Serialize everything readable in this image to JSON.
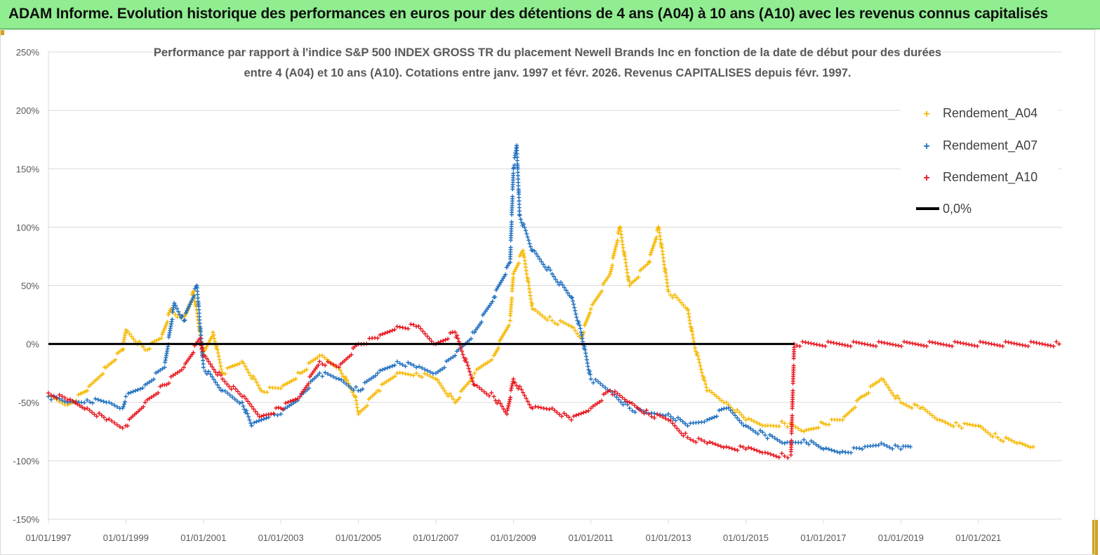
{
  "header": {
    "title": "ADAM Informe. Evolution historique des performances en euros pour des détentions de 4 ans (A04) à 10 ans (A10) avec les revenus connus capitalisés"
  },
  "chart_data": {
    "type": "scatter",
    "title_line1": "Performance par rapport à l'indice S&P 500 INDEX GROSS TR  du placement Newell Brands Inc en fonction de la date de début pour des durées",
    "title_line2": "entre 4 (A04) et 10 ans (A10). Cotations entre janv. 1997 et févr. 2026. Revenus CAPITALISES depuis févr. 1997.",
    "x_axis": {
      "type": "date",
      "range": [
        "1997-01-01",
        "2023-03-01"
      ],
      "tick_labels": [
        "01/01/1997",
        "01/01/1999",
        "01/01/2001",
        "01/01/2003",
        "01/01/2005",
        "01/01/2007",
        "01/01/2009",
        "01/01/2011",
        "01/01/2013",
        "01/01/2015",
        "01/01/2017",
        "01/01/2019",
        "01/01/2021"
      ]
    },
    "y_axis": {
      "unit": "%",
      "range": [
        -150,
        250
      ],
      "step": 50,
      "tick_labels": [
        "250%",
        "200%",
        "150%",
        "100%",
        "50%",
        "0%",
        "-50%",
        "-100%",
        "-150%"
      ]
    },
    "grid": "horizontal",
    "legend_position": "top-right",
    "legend": [
      {
        "label": "Rendement_A04",
        "color": "#f5b800",
        "marker": "plus"
      },
      {
        "label": "Rendement_A07",
        "color": "#1f6fbf",
        "marker": "plus"
      },
      {
        "label": "Rendement_A10",
        "color": "#e8141c",
        "marker": "plus"
      },
      {
        "label": "0,0%",
        "color": "#000000",
        "marker": "line"
      }
    ],
    "series": [
      {
        "name": "Rendement_A04",
        "color": "#f5b800",
        "points": [
          [
            "1997-01-01",
            -45
          ],
          [
            "1997-07-01",
            -52
          ],
          [
            "1998-01-01",
            -40
          ],
          [
            "1998-07-01",
            -20
          ],
          [
            "1998-12-01",
            -5
          ],
          [
            "1999-01-01",
            12
          ],
          [
            "1999-07-01",
            -5
          ],
          [
            "1999-12-01",
            5
          ],
          [
            "2000-03-01",
            30
          ],
          [
            "2000-07-01",
            20
          ],
          [
            "2000-10-01",
            45
          ],
          [
            "2001-01-01",
            -10
          ],
          [
            "2001-04-01",
            10
          ],
          [
            "2001-07-01",
            -25
          ],
          [
            "2002-01-01",
            -15
          ],
          [
            "2002-07-01",
            -40
          ],
          [
            "2003-01-01",
            -38
          ],
          [
            "2003-07-01",
            -25
          ],
          [
            "2004-01-01",
            -10
          ],
          [
            "2004-07-01",
            -20
          ],
          [
            "2004-12-01",
            -45
          ],
          [
            "2005-01-01",
            -60
          ],
          [
            "2005-07-01",
            -40
          ],
          [
            "2006-01-01",
            -25
          ],
          [
            "2006-07-01",
            -25
          ],
          [
            "2007-01-01",
            -30
          ],
          [
            "2007-07-01",
            -50
          ],
          [
            "2008-01-01",
            -25
          ],
          [
            "2008-07-01",
            -10
          ],
          [
            "2008-12-01",
            20
          ],
          [
            "2009-01-01",
            60
          ],
          [
            "2009-04-01",
            80
          ],
          [
            "2009-07-01",
            30
          ],
          [
            "2010-01-01",
            20
          ],
          [
            "2010-07-01",
            15
          ],
          [
            "2010-10-01",
            5
          ],
          [
            "2011-01-01",
            30
          ],
          [
            "2011-07-01",
            60
          ],
          [
            "2011-10-01",
            100
          ],
          [
            "2012-01-01",
            50
          ],
          [
            "2012-07-01",
            70
          ],
          [
            "2012-10-01",
            100
          ],
          [
            "2013-01-01",
            45
          ],
          [
            "2013-07-01",
            30
          ],
          [
            "2013-09-01",
            0
          ],
          [
            "2014-01-01",
            -40
          ],
          [
            "2014-07-01",
            -50
          ],
          [
            "2015-01-01",
            -65
          ],
          [
            "2015-07-01",
            -70
          ],
          [
            "2016-01-01",
            -68
          ],
          [
            "2016-07-01",
            -75
          ],
          [
            "2017-01-01",
            -68
          ],
          [
            "2017-07-01",
            -65
          ],
          [
            "2018-01-01",
            -45
          ],
          [
            "2018-07-01",
            -30
          ],
          [
            "2019-01-01",
            -50
          ],
          [
            "2019-07-01",
            -55
          ],
          [
            "2020-01-01",
            -65
          ],
          [
            "2020-07-01",
            -70
          ],
          [
            "2021-01-01",
            -70
          ],
          [
            "2021-07-01",
            -80
          ],
          [
            "2022-01-01",
            -85
          ],
          [
            "2022-06-01",
            -88
          ]
        ]
      },
      {
        "name": "Rendement_A07",
        "color": "#1f6fbf",
        "points": [
          [
            "1997-01-01",
            -45
          ],
          [
            "1997-07-01",
            -50
          ],
          [
            "1998-01-01",
            -48
          ],
          [
            "1998-07-01",
            -50
          ],
          [
            "1998-12-01",
            -55
          ],
          [
            "1999-01-01",
            -45
          ],
          [
            "1999-07-01",
            -35
          ],
          [
            "2000-01-01",
            -20
          ],
          [
            "2000-04-01",
            35
          ],
          [
            "2000-07-01",
            20
          ],
          [
            "2000-11-01",
            50
          ],
          [
            "2001-01-01",
            -20
          ],
          [
            "2001-07-01",
            -40
          ],
          [
            "2002-01-01",
            -50
          ],
          [
            "2002-04-01",
            -70
          ],
          [
            "2002-10-01",
            -60
          ],
          [
            "2003-01-01",
            -60
          ],
          [
            "2003-07-01",
            -45
          ],
          [
            "2004-01-01",
            -25
          ],
          [
            "2004-07-01",
            -30
          ],
          [
            "2005-01-01",
            -40
          ],
          [
            "2005-07-01",
            -25
          ],
          [
            "2006-01-01",
            -15
          ],
          [
            "2006-07-01",
            -20
          ],
          [
            "2007-01-01",
            -25
          ],
          [
            "2007-07-01",
            -10
          ],
          [
            "2008-01-01",
            10
          ],
          [
            "2008-07-01",
            40
          ],
          [
            "2008-12-01",
            70
          ],
          [
            "2009-01-01",
            150
          ],
          [
            "2009-02-01",
            170
          ],
          [
            "2009-03-01",
            110
          ],
          [
            "2009-07-01",
            80
          ],
          [
            "2010-01-01",
            60
          ],
          [
            "2010-07-01",
            40
          ],
          [
            "2010-10-01",
            10
          ],
          [
            "2011-01-01",
            -30
          ],
          [
            "2011-07-01",
            -40
          ],
          [
            "2012-01-01",
            -55
          ],
          [
            "2012-07-01",
            -60
          ],
          [
            "2013-01-01",
            -60
          ],
          [
            "2013-07-01",
            -70
          ],
          [
            "2014-01-01",
            -65
          ],
          [
            "2014-07-01",
            -55
          ],
          [
            "2015-01-01",
            -70
          ],
          [
            "2015-07-01",
            -78
          ],
          [
            "2016-01-01",
            -85
          ],
          [
            "2016-07-01",
            -82
          ],
          [
            "2017-01-01",
            -90
          ],
          [
            "2017-07-01",
            -92
          ],
          [
            "2018-01-01",
            -90
          ],
          [
            "2018-07-01",
            -85
          ],
          [
            "2019-01-01",
            -90
          ],
          [
            "2019-04-01",
            -88
          ]
        ]
      },
      {
        "name": "Rendement_A10",
        "color": "#e8141c",
        "points": [
          [
            "1997-01-01",
            -42
          ],
          [
            "1997-07-01",
            -48
          ],
          [
            "1998-01-01",
            -55
          ],
          [
            "1998-07-01",
            -65
          ],
          [
            "1998-12-01",
            -72
          ],
          [
            "1999-01-01",
            -70
          ],
          [
            "1999-07-01",
            -50
          ],
          [
            "2000-01-01",
            -35
          ],
          [
            "2000-07-01",
            -20
          ],
          [
            "2000-12-01",
            5
          ],
          [
            "2001-01-01",
            -10
          ],
          [
            "2001-07-01",
            -30
          ],
          [
            "2002-01-01",
            -45
          ],
          [
            "2002-07-01",
            -62
          ],
          [
            "2003-01-01",
            -55
          ],
          [
            "2003-07-01",
            -45
          ],
          [
            "2004-01-01",
            -15
          ],
          [
            "2004-07-01",
            -20
          ],
          [
            "2005-01-01",
            0
          ],
          [
            "2005-07-01",
            5
          ],
          [
            "2006-01-01",
            15
          ],
          [
            "2006-07-01",
            15
          ],
          [
            "2007-01-01",
            0
          ],
          [
            "2007-07-01",
            10
          ],
          [
            "2008-01-01",
            -35
          ],
          [
            "2008-07-01",
            -45
          ],
          [
            "2008-11-01",
            -60
          ],
          [
            "2009-01-01",
            -30
          ],
          [
            "2009-07-01",
            -55
          ],
          [
            "2010-01-01",
            -55
          ],
          [
            "2010-07-01",
            -65
          ],
          [
            "2011-01-01",
            -55
          ],
          [
            "2011-07-01",
            -40
          ],
          [
            "2012-01-01",
            -50
          ],
          [
            "2012-07-01",
            -60
          ],
          [
            "2013-01-01",
            -65
          ],
          [
            "2013-07-01",
            -80
          ],
          [
            "2014-01-01",
            -85
          ],
          [
            "2014-07-01",
            -88
          ],
          [
            "2015-01-01",
            -90
          ],
          [
            "2015-07-01",
            -93
          ],
          [
            "2016-01-01",
            -96
          ],
          [
            "2016-03-01",
            -95
          ],
          [
            "2016-04-01",
            0
          ],
          [
            "2023-02-01",
            0
          ]
        ]
      }
    ],
    "reference_line": {
      "label": "0,0%",
      "y": 0,
      "color": "#000000"
    }
  }
}
